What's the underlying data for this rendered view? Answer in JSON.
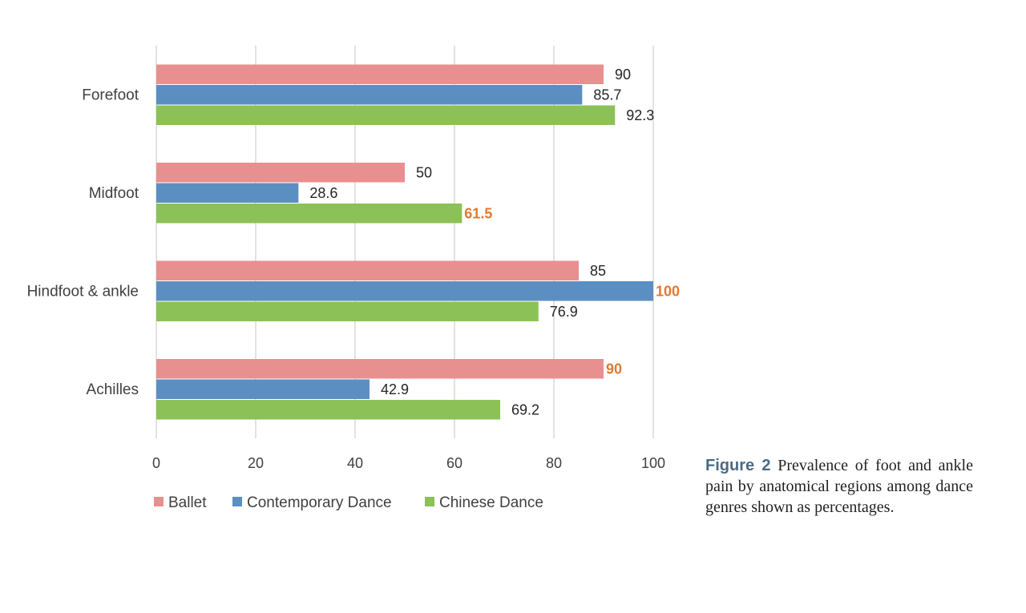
{
  "chart_data": {
    "type": "bar",
    "orientation": "horizontal",
    "categories": [
      "Forefoot",
      "Midfoot",
      "Hindfoot & ankle",
      "Achilles"
    ],
    "series": [
      {
        "name": "Ballet",
        "color": "#e8908f",
        "values": [
          90,
          50,
          85,
          90
        ]
      },
      {
        "name": "Contemporary Dance",
        "color": "#5b8fc2",
        "values": [
          85.7,
          28.6,
          100,
          42.9
        ]
      },
      {
        "name": "Chinese Dance",
        "color": "#8cc157",
        "values": [
          92.3,
          61.5,
          76.9,
          69.2
        ]
      }
    ],
    "value_labels": [
      [
        "90",
        "50",
        "85",
        "90"
      ],
      [
        "85.7",
        "28.6",
        "100",
        "42.9"
      ],
      [
        "92.3",
        "61.5",
        "76.9",
        "69.2"
      ]
    ],
    "highlighted_labels": [
      {
        "series": 0,
        "category": 3
      },
      {
        "series": 1,
        "category": 2
      },
      {
        "series": 2,
        "category": 1
      }
    ],
    "highlight_color": "#e07a30",
    "xlim": [
      0,
      100
    ],
    "xticks": [
      0,
      20,
      40,
      60,
      80,
      100
    ],
    "grid": true,
    "legend_position": "bottom"
  },
  "caption": {
    "label": "Figure 2",
    "text": "Prevalence of foot and ankle pain by anatomical regions among dance genres shown as percentages."
  }
}
